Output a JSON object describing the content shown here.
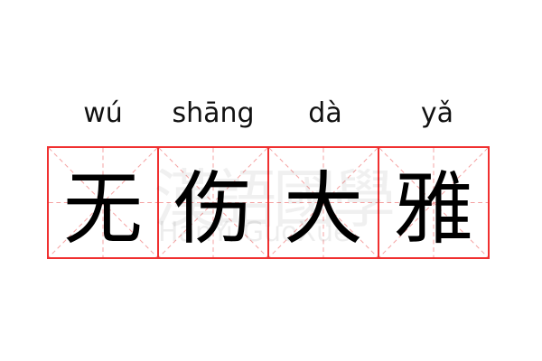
{
  "word": [
    {
      "pinyin": "wú",
      "hanzi": "无"
    },
    {
      "pinyin": "shāng",
      "hanzi": "伤"
    },
    {
      "pinyin": "dà",
      "hanzi": "大"
    },
    {
      "pinyin": "yǎ",
      "hanzi": "雅"
    }
  ],
  "watermark": {
    "chinese": "漢語國學",
    "latin": "HanYuGuoXue"
  },
  "colors": {
    "grid_border": "#f03030",
    "grid_guides": "#f5a0a0",
    "text": "#000000"
  }
}
